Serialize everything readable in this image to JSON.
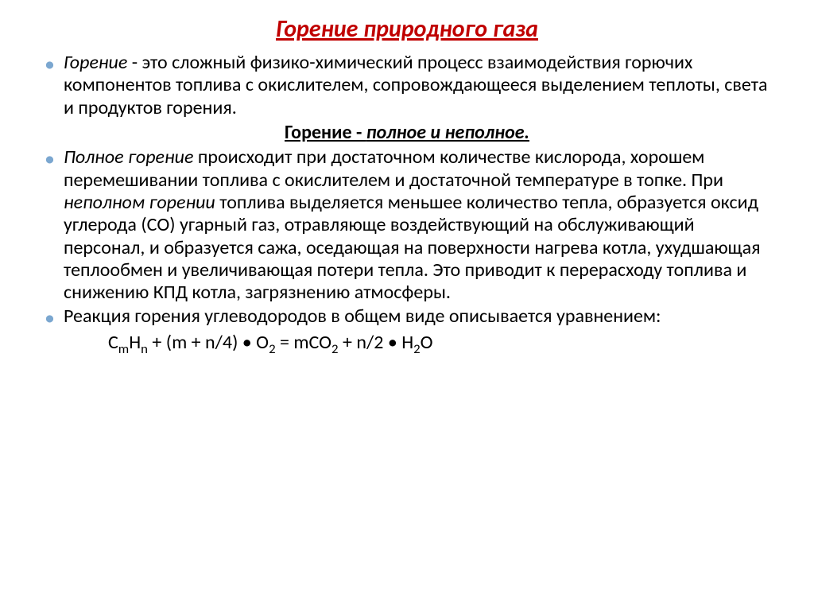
{
  "title": {
    "text": "Горение природного газа",
    "color": "#c00000",
    "fontsize": 30
  },
  "body": {
    "fontsize": 24,
    "line_height": 1.18,
    "bullet_color": "#7ba7d0",
    "text_color": "#000000"
  },
  "para1": {
    "lead": "Горение",
    "rest": " - это сложный физико-химический процесс взаимодействия горючих компонентов топлива с окислителем, сопровождающееся выделением теплоты, света и продуктов горения."
  },
  "subtitle": {
    "lead": "Горение - ",
    "tail": "полное и неполное."
  },
  "para2": {
    "lead": "Полное горение",
    "mid1": " происходит при достаточном количестве кислорода, хорошем перемешивании топлива с окислителем и достаточной температуре в топке. При ",
    "italic2": "неполном горении",
    "mid2": " топлива выделяется меньшее количество тепла, образуется оксид углерода (СО) угарный газ, отравляюще воздействующий на обслуживающий персонал, и образуется сажа, оседающая на поверхности нагрева котла, ухудшающая теплообмен и увеличивающая потери тепла. Это приводит к перерасходу топлива и снижению КПД котла, загрязнению атмосферы."
  },
  "para3": {
    "text": "Реакция горения углеводородов в общем виде описывается уравнением:"
  },
  "formula": {
    "text_html": "C<sub>m</sub>H<sub>n</sub> + (m + n/4) • O<sub>2</sub> = mCO<sub>2</sub> + n/2 • H<sub>2</sub>O"
  }
}
